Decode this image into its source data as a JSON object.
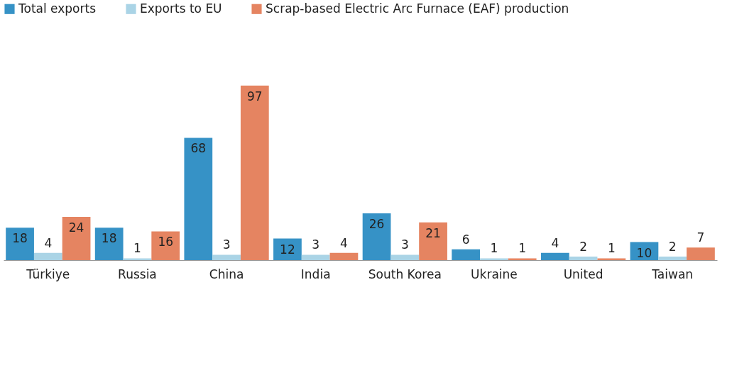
{
  "chart_data": {
    "type": "bar",
    "categories": [
      "Türkiye",
      "Russia",
      "China",
      "India",
      "South Korea",
      "Ukraine",
      "United",
      "Taiwan"
    ],
    "series": [
      {
        "name": "Total exports",
        "color": "#3692c6",
        "values": [
          18,
          18,
          68,
          12,
          26,
          6,
          4,
          10
        ]
      },
      {
        "name": "Exports to EU",
        "color": "#aad4e6",
        "values": [
          4,
          1,
          3,
          3,
          3,
          1,
          2,
          2
        ]
      },
      {
        "name": "Scrap-based Electric Arc Furnace (EAF) production",
        "color": "#e58461",
        "values": [
          24,
          16,
          97,
          4,
          21,
          1,
          1,
          7
        ]
      }
    ],
    "data_labels": true,
    "legend": "top",
    "grid": false
  }
}
